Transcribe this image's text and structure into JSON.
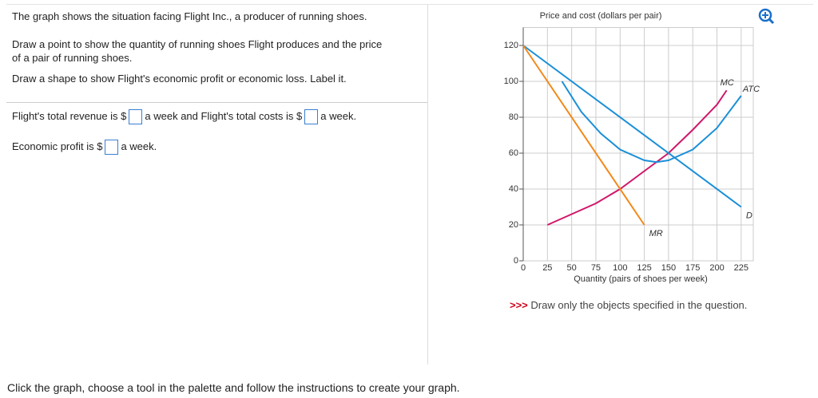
{
  "instructions": {
    "intro": "The graph shows the situation facing Flight Inc., a producer of running shoes.",
    "task1": [
      "Draw a point to show the quantity of running shoes Flight produces and the price",
      "of a pair of running shoes."
    ],
    "task2": "Draw a shape to show Flight's economic profit or economic loss. Label it."
  },
  "questions": {
    "revenue_prefix": "Flight's total revenue is $",
    "revenue_middle": "a week and Flight's total costs is $",
    "revenue_suffix": "a week.",
    "profit_prefix": "Economic profit is $",
    "profit_suffix": "a week."
  },
  "footer": "Click the graph, choose a tool in the palette and follow the instructions to create your graph.",
  "note": {
    "marker": ">>>",
    "text": "Draw only the objects specified in the question."
  },
  "chart_data": {
    "type": "line",
    "y_label": "Price and cost (dollars per pair)",
    "x_label": "Quantity (pairs of shoes per week)",
    "xlim": [
      0,
      237.5
    ],
    "ylim": [
      0,
      130
    ],
    "xticks": [
      0,
      25,
      50,
      75,
      100,
      125,
      150,
      175,
      200,
      225
    ],
    "yticks": [
      0,
      20,
      40,
      60,
      80,
      100,
      120
    ],
    "grid": true,
    "series": [
      {
        "name": "MC",
        "color": "#d0176a",
        "x": [
          25,
          50,
          75,
          100,
          125,
          150,
          175,
          200,
          210
        ],
        "values": [
          20,
          26,
          32,
          40,
          50,
          60,
          73,
          87,
          95
        ]
      },
      {
        "name": "ATC",
        "color": "#1b8fd8",
        "x": [
          40,
          60,
          80,
          100,
          125,
          137.5,
          150,
          175,
          200,
          225
        ],
        "values": [
          100,
          83,
          71,
          62,
          56,
          55,
          56,
          62,
          74,
          92
        ]
      },
      {
        "name": "D",
        "color": "#1b8fd8",
        "x": [
          0,
          225
        ],
        "values": [
          120,
          30
        ]
      },
      {
        "name": "MR",
        "color": "#f28a1b",
        "x": [
          0,
          125
        ],
        "values": [
          120,
          20
        ]
      }
    ]
  }
}
